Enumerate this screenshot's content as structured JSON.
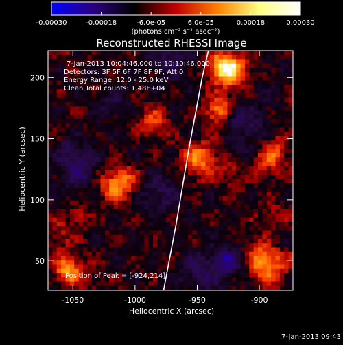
{
  "chart_data": {
    "type": "heatmap",
    "title": "Reconstructed RHESSI Image",
    "xlabel": "Heliocentric X (arcsec)",
    "ylabel": "Heliocentric Y (arcsec)",
    "xlim": [
      -1070,
      -873
    ],
    "ylim": [
      26,
      222
    ],
    "x_ticks": [
      -1050,
      -1000,
      -950,
      -900
    ],
    "x_tick_labels": [
      "-1050",
      "-1000",
      "-950",
      "-900"
    ],
    "y_ticks": [
      50,
      100,
      150,
      200
    ],
    "y_tick_labels": [
      "50",
      "100",
      "150",
      "200"
    ],
    "colorbar": {
      "min": -0.0003,
      "max": 0.0003,
      "tick_values": [
        -0.0003,
        -0.00018,
        -6e-05,
        6e-05,
        0.00018,
        0.0003
      ],
      "tick_labels": [
        "-0.00030",
        "-0.00018",
        "-6.0e-05",
        "6.0e-05",
        "0.00018",
        "0.00030"
      ],
      "units": "(photons cm⁻² s⁻¹ asec⁻²)",
      "colors": [
        "#0000ff",
        "#2a0080",
        "#000000",
        "#c00000",
        "#ff8000",
        "#ffff80",
        "#ffffff"
      ]
    },
    "annotations": {
      "time_range": "7-Jan-2013 10:04:46.000 to 10:10:46.000",
      "detectors": "Detectors: 3F 5F 6F 7F 8F 9F, Att 0",
      "energy_range": "Energy Range: 12.0 - 25.0 keV",
      "algorithm": "Clean     Total counts: 1.48E+04",
      "peak": "Position of Peak = [-924,214]"
    },
    "peak": {
      "x": -924,
      "y": 214
    },
    "limb": [
      [
        -977,
        26
      ],
      [
        -967,
        80
      ],
      [
        -957,
        140
      ],
      [
        -946,
        200
      ],
      [
        -941,
        222
      ]
    ],
    "footer": "7-Jan-2013 09:43"
  }
}
